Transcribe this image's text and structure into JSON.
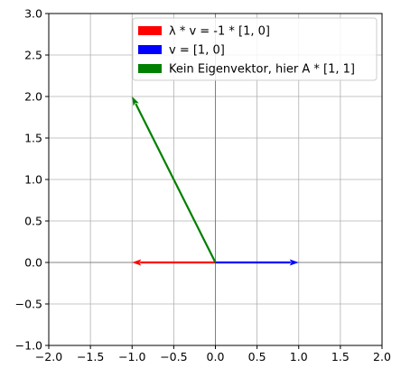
{
  "chart_data": {
    "type": "quiver",
    "xlim": [
      -2.0,
      2.0
    ],
    "ylim": [
      -1.0,
      3.0
    ],
    "grid": true,
    "legend_position": "top-right",
    "x_ticks": [
      "−2.0",
      "−1.5",
      "−1.0",
      "−0.5",
      "0.0",
      "0.5",
      "1.0",
      "1.5",
      "2.0"
    ],
    "y_ticks": [
      "−1.0",
      "−0.5",
      "0.0",
      "0.5",
      "1.0",
      "1.5",
      "2.0",
      "2.5",
      "3.0"
    ],
    "series": [
      {
        "name": "λ * v = -1 * [1, 0]",
        "color": "#ff0000",
        "origin": [
          0,
          0
        ],
        "vector": [
          -1,
          0
        ]
      },
      {
        "name": "v = [1, 0]",
        "color": "#0000ff",
        "origin": [
          0,
          0
        ],
        "vector": [
          1,
          0
        ]
      },
      {
        "name": "Kein Eigenvektor, hier A * [1, 1]",
        "color": "#008000",
        "origin": [
          0,
          0
        ],
        "vector": [
          -1,
          2
        ]
      }
    ]
  }
}
